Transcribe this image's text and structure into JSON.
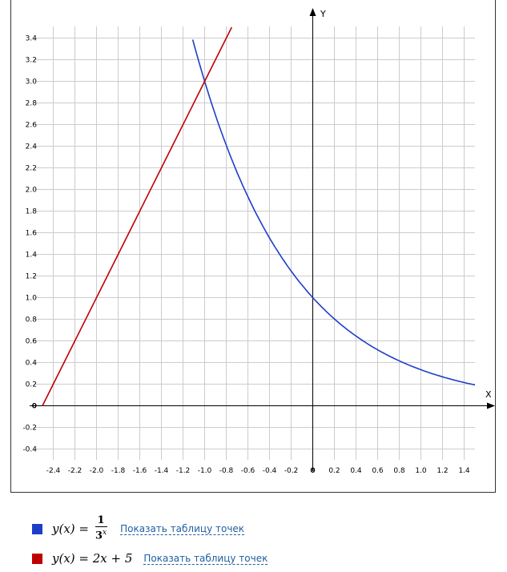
{
  "chart_data": {
    "type": "line",
    "title": "",
    "xlabel": "X",
    "ylabel": "Y",
    "xlim": [
      -2.5,
      1.5
    ],
    "ylim": [
      -0.4,
      3.5
    ],
    "grid": true,
    "x_ticks": [
      "-2.4",
      "-2.2",
      "-2.0",
      "-1.8",
      "-1.6",
      "-1.4",
      "-1.2",
      "-1.0",
      "-0.8",
      "-0.6",
      "-0.4",
      "-0.2",
      "0",
      "0.2",
      "0.4",
      "0.6",
      "0.8",
      "1.0",
      "1.2",
      "1.4"
    ],
    "y_ticks": [
      "3.4",
      "3.2",
      "3.0",
      "2.8",
      "2.6",
      "2.4",
      "2.2",
      "2.0",
      "1.8",
      "1.6",
      "1.4",
      "1.2",
      "1.0",
      "0.8",
      "0.6",
      "0.4",
      "0.2",
      "0",
      "-0.2",
      "-0.4"
    ],
    "series": [
      {
        "color": "#1e3ec8",
        "formula": "y(x) = 1/3^x",
        "x": [
          -1.11,
          -1.0,
          -0.9,
          -0.8,
          -0.7,
          -0.6,
          -0.5,
          -0.4,
          -0.3,
          -0.2,
          -0.1,
          0.0,
          0.2,
          0.4,
          0.6,
          0.8,
          1.0,
          1.2,
          1.5
        ],
        "y": [
          3.39,
          3.0,
          2.69,
          2.41,
          2.16,
          1.93,
          1.73,
          1.55,
          1.39,
          1.25,
          1.12,
          1.0,
          0.8,
          0.64,
          0.52,
          0.42,
          0.33,
          0.27,
          0.19
        ]
      },
      {
        "color": "#c00000",
        "formula": "y(x) = 2x + 5",
        "x": [
          -2.5,
          -0.75
        ],
        "y": [
          0.0,
          3.5
        ]
      }
    ]
  },
  "legend": [
    {
      "color": "#1e3ec8",
      "lhs": "y(x) =",
      "numerator": "1",
      "base": "3",
      "exponent": "x",
      "link": "Показать таблицу точек"
    },
    {
      "color": "#c00000",
      "lhs": "y(x) = 2x + 5",
      "link": "Показать таблицу точек"
    }
  ]
}
